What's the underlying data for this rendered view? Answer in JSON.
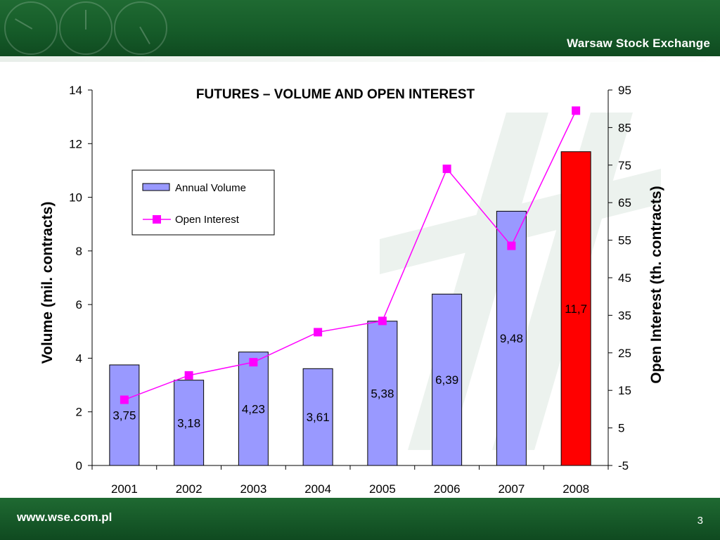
{
  "header": {
    "brand": "Warsaw Stock Exchange"
  },
  "footer": {
    "url": "www.wse.com.pl",
    "page_number": "3"
  },
  "colors": {
    "header_green": "#1a6130",
    "bar_fill": "#9999ff",
    "bar_highlight": "#ff0000",
    "line": "#ff00ff"
  },
  "chart_data": {
    "type": "bar",
    "title": "FUTURES – VOLUME AND OPEN INTEREST",
    "ylabel": "Volume (mil. contracts)",
    "y2label": "Open Interest (th. contracts)",
    "categories": [
      "2001",
      "2002",
      "2003",
      "2004",
      "2005",
      "2006",
      "2007",
      "2008"
    ],
    "ylim": [
      0,
      14
    ],
    "yticks": [
      0,
      2,
      4,
      6,
      8,
      10,
      12,
      14
    ],
    "y2lim": [
      -5,
      95
    ],
    "y2ticks": [
      -5,
      5,
      15,
      25,
      35,
      45,
      55,
      65,
      75,
      85,
      95
    ],
    "grid": false,
    "legend_position": "upper-left",
    "series": [
      {
        "name": "Annual Volume",
        "type": "bar",
        "axis": "left",
        "values": [
          3.75,
          3.18,
          4.23,
          3.61,
          5.38,
          6.39,
          9.48,
          11.7
        ],
        "labels": [
          "3,75",
          "3,18",
          "4,23",
          "3,61",
          "5,38",
          "6,39",
          "9,48",
          "11,7"
        ]
      },
      {
        "name": "Open Interest",
        "type": "line",
        "axis": "right",
        "values": [
          12.5,
          19.0,
          22.5,
          30.5,
          33.5,
          74.0,
          53.5,
          89.5
        ]
      }
    ]
  }
}
